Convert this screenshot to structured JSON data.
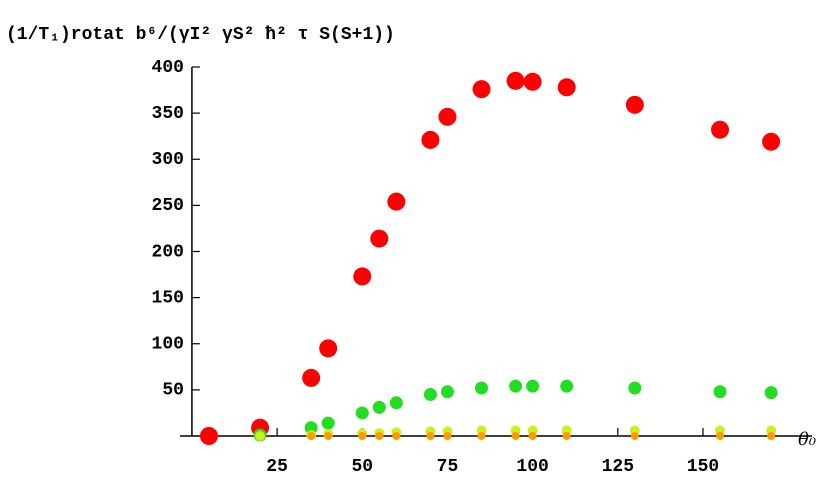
{
  "chart_data": {
    "type": "scatter",
    "y_label": "(1/T₁)rotat b⁶/(γI² γS² ħ² τ S(S+1))",
    "x_label": "θ₀",
    "xlim": [
      -3.5,
      182
    ],
    "ylim": [
      0,
      400
    ],
    "xticks": [
      25,
      50,
      75,
      100,
      125,
      150
    ],
    "yticks": [
      50,
      100,
      150,
      200,
      250,
      300,
      350,
      400
    ],
    "series": [
      {
        "color": "#ff0000",
        "x": [
          5,
          20,
          35,
          40,
          50,
          55,
          60,
          70,
          75,
          85,
          95,
          100,
          110,
          130,
          155,
          170
        ],
        "values": [
          0,
          9,
          63,
          95,
          173,
          214,
          254,
          321,
          346,
          376,
          385,
          384,
          378,
          359,
          332,
          319
        ]
      },
      {
        "color": "#22dd22",
        "x": [
          20,
          35,
          40,
          50,
          55,
          60,
          70,
          75,
          85,
          95,
          100,
          110,
          130,
          155,
          170
        ],
        "values": [
          1,
          9,
          14,
          25,
          31,
          36,
          45,
          48,
          52,
          54,
          54,
          54,
          52,
          48,
          47
        ]
      },
      {
        "color": "#ccee22",
        "x": [
          20,
          35,
          40,
          50,
          55,
          60,
          70,
          75,
          85,
          95,
          100,
          110,
          130,
          155,
          170
        ],
        "values": [
          0,
          1,
          2,
          3,
          3,
          4,
          5,
          5,
          6,
          6,
          6,
          6,
          6,
          6,
          6
        ]
      },
      {
        "color": "#ff9900",
        "x": [
          35,
          40,
          50,
          55,
          60,
          70,
          75,
          85,
          95,
          100,
          110,
          130,
          155,
          170
        ],
        "values": [
          0,
          0,
          0,
          0,
          0,
          0,
          0,
          0,
          0,
          0,
          0,
          0,
          0,
          0
        ]
      }
    ]
  }
}
